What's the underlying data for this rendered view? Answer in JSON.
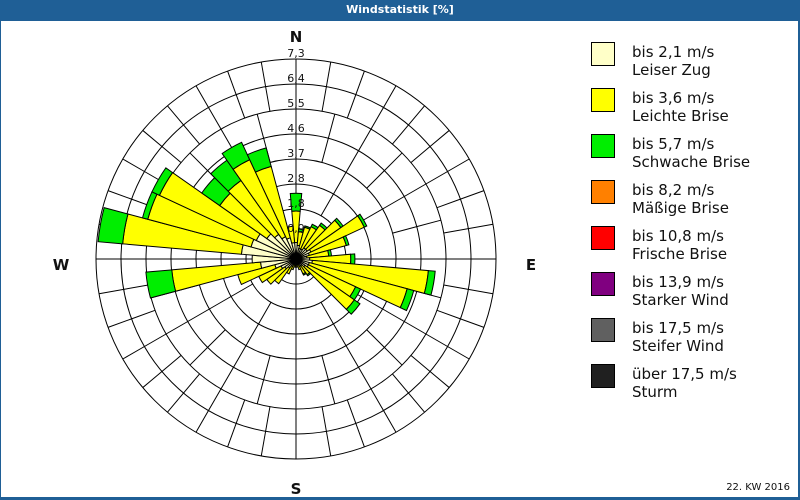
{
  "header": {
    "title": "Windstatistik [%]"
  },
  "footer": {
    "label": "22. KW 2016"
  },
  "compass": {
    "n": "N",
    "e": "E",
    "s": "S",
    "w": "W"
  },
  "legend": [
    {
      "speed": "bis 2,1 m/s",
      "name": "Leiser Zug",
      "color": "#ffffc8"
    },
    {
      "speed": "bis 3,6 m/s",
      "name": "Leichte Brise",
      "color": "#ffff00"
    },
    {
      "speed": "bis 5,7 m/s",
      "name": "Schwache Brise",
      "color": "#00ee00"
    },
    {
      "speed": "bis 8,2 m/s",
      "name": "Mäßige Brise",
      "color": "#ff8000"
    },
    {
      "speed": "bis 10,8 m/s",
      "name": "Frische Brise",
      "color": "#ff0000"
    },
    {
      "speed": "bis 13,9 m/s",
      "name": "Starker Wind",
      "color": "#800080"
    },
    {
      "speed": "bis 17,5 m/s",
      "name": "Steifer Wind",
      "color": "#606060"
    },
    {
      "speed": "über 17,5 m/s",
      "name": "Sturm",
      "color": "#202020"
    }
  ],
  "chart_data": {
    "type": "wind-rose",
    "title": "Windstatistik [%]",
    "subtitle": "22. KW 2016",
    "radial_ticks": [
      "0,9",
      "1,8",
      "2,8",
      "3,7",
      "4,6",
      "5,5",
      "6,4",
      "7,3"
    ],
    "rmax": 7.3,
    "sector_width_deg": 10,
    "series_names": [
      "bis 2,1 m/s",
      "bis 3,6 m/s",
      "bis 5,7 m/s"
    ],
    "petals": [
      {
        "dir": 0,
        "cum": [
          0.6,
          1.75,
          2.4
        ]
      },
      {
        "dir": 10,
        "cum": [
          0.5,
          1.0,
          1.1
        ]
      },
      {
        "dir": 20,
        "cum": [
          0.4,
          1.2,
          1.25
        ]
      },
      {
        "dir": 30,
        "cum": [
          0.4,
          1.3,
          1.4
        ]
      },
      {
        "dir": 40,
        "cum": [
          0.5,
          1.5,
          1.6
        ]
      },
      {
        "dir": 50,
        "cum": [
          0.5,
          2.0,
          2.1
        ]
      },
      {
        "dir": 60,
        "cum": [
          0.6,
          2.75,
          2.85
        ]
      },
      {
        "dir": 70,
        "cum": [
          0.5,
          1.9,
          2.0
        ]
      },
      {
        "dir": 80,
        "cum": [
          0.4,
          1.2,
          1.3
        ]
      },
      {
        "dir": 90,
        "cum": [
          0.5,
          2.0,
          2.15
        ]
      },
      {
        "dir": 100,
        "cum": [
          0.6,
          4.85,
          5.1
        ]
      },
      {
        "dir": 110,
        "cum": [
          0.5,
          4.2,
          4.45
        ]
      },
      {
        "dir": 120,
        "cum": [
          0.5,
          2.4,
          2.6
        ]
      },
      {
        "dir": 130,
        "cum": [
          0.4,
          2.6,
          2.85
        ]
      },
      {
        "dir": 140,
        "cum": [
          0.3,
          0.7,
          0.75
        ]
      },
      {
        "dir": 150,
        "cum": [
          0.3,
          0.6,
          0.65
        ]
      },
      {
        "dir": 160,
        "cum": [
          0.2,
          0.4,
          0.4
        ]
      },
      {
        "dir": 170,
        "cum": [
          0.2,
          0.3,
          0.3
        ]
      },
      {
        "dir": 180,
        "cum": [
          0.2,
          0.3,
          0.3
        ]
      },
      {
        "dir": 190,
        "cum": [
          0.2,
          0.3,
          0.3
        ]
      },
      {
        "dir": 200,
        "cum": [
          0.2,
          0.4,
          0.4
        ]
      },
      {
        "dir": 210,
        "cum": [
          0.3,
          0.6,
          0.6
        ]
      },
      {
        "dir": 220,
        "cum": [
          0.4,
          1.1,
          1.1
        ]
      },
      {
        "dir": 230,
        "cum": [
          0.5,
          1.3,
          1.3
        ]
      },
      {
        "dir": 240,
        "cum": [
          0.6,
          1.5,
          1.5
        ]
      },
      {
        "dir": 250,
        "cum": [
          0.8,
          2.2,
          2.2
        ]
      },
      {
        "dir": 260,
        "cum": [
          1.3,
          4.55,
          5.5
        ]
      },
      {
        "dir": 270,
        "cum": [
          1.6,
          1.6,
          1.6
        ]
      },
      {
        "dir": 280,
        "cum": [
          2.0,
          6.35,
          7.25
        ]
      },
      {
        "dir": 290,
        "cum": [
          1.7,
          5.6,
          5.8
        ]
      },
      {
        "dir": 300,
        "cum": [
          1.6,
          5.5,
          5.8
        ]
      },
      {
        "dir": 310,
        "cum": [
          1.3,
          3.4,
          4.2
        ]
      },
      {
        "dir": 320,
        "cum": [
          1.1,
          3.5,
          4.4
        ]
      },
      {
        "dir": 330,
        "cum": [
          0.9,
          4.0,
          4.7
        ]
      },
      {
        "dir": 340,
        "cum": [
          0.8,
          3.5,
          4.2
        ]
      },
      {
        "dir": 350,
        "cum": [
          0.6,
          1.2,
          1.2
        ]
      }
    ],
    "legend_position": "right"
  }
}
